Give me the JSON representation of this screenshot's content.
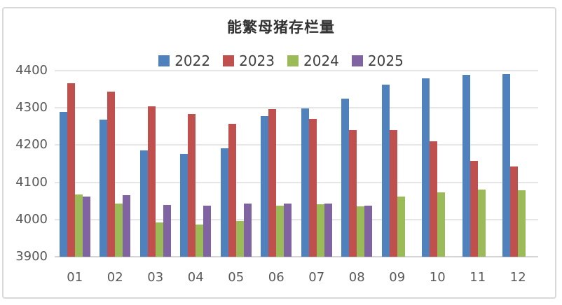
{
  "chart_data": {
    "type": "bar",
    "title": "能繁母猪存栏量",
    "xlabel": "",
    "ylabel": "",
    "categories": [
      "01",
      "02",
      "03",
      "04",
      "05",
      "06",
      "07",
      "08",
      "09",
      "10",
      "11",
      "12"
    ],
    "series": [
      {
        "name": "2022",
        "color": "#4F81BD",
        "values": [
          4290,
          4268,
          4185,
          4177,
          4192,
          4277,
          4298,
          4324,
          4362,
          4379,
          4388,
          4390
        ]
      },
      {
        "name": "2023",
        "color": "#C0504D",
        "values": [
          4367,
          4343,
          4305,
          4284,
          4258,
          4296,
          4271,
          4241,
          4240,
          4210,
          4158,
          4142
        ]
      },
      {
        "name": "2024",
        "color": "#9BBB59",
        "values": [
          4067,
          4042,
          3992,
          3986,
          3996,
          4038,
          4041,
          4036,
          4062,
          4073,
          4080,
          4078
        ]
      },
      {
        "name": "2025",
        "color": "#8064A2",
        "values": [
          4062,
          4066,
          4039,
          4038,
          4042,
          4043,
          4042,
          4038,
          null,
          null,
          null,
          null
        ]
      }
    ],
    "ylim": [
      3900,
      4400
    ],
    "yticks": [
      3900,
      4000,
      4100,
      4200,
      4300,
      4400
    ],
    "grid": true,
    "legend_position": "top"
  },
  "style": {
    "background": "#FFFFFF",
    "frame_border_color": "#D9D9D9",
    "grid_color": "#E6E6E6",
    "axis_line_color": "#D4D4D4",
    "tick_label_color": "#595959",
    "legend_label_color": "#404040",
    "title_color": "#333333"
  }
}
